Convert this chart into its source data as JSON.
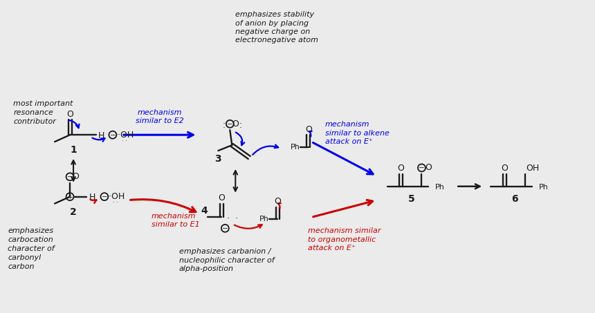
{
  "bg_color": "#ebebeb",
  "black": "#1a1a1a",
  "blue": "#0000ee",
  "red": "#cc0000",
  "annotations": {
    "most_important": "most important\nresonance\ncontributor",
    "emphasizes_carbocation": "emphasizes\ncarbocation\ncharacter of\ncarbonyl\ncarbon",
    "emphasizes_stability": "emphasizes stability\nof anion by placing\nnegative charge on\nelectronegative atom",
    "emphasizes_carbanion": "emphasizes carbanion /\nnucleophilic character of\nalpha-position",
    "mech_E2": "mechanism\nsimilar to E2",
    "mech_E1": "mechanism\nsimilar to E1",
    "mech_alkene": "mechanism\nsimilar to alkene\nattack on E⁺",
    "mech_organometallic": "mechanism similar\nto organometallic\nattack on E⁺"
  }
}
